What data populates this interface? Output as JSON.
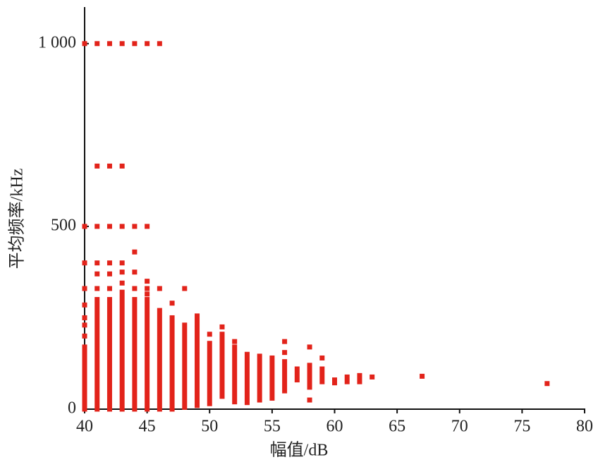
{
  "chart_data": {
    "type": "scatter",
    "x_label": "幅值/dB",
    "y_label": "平均频率/kHz",
    "color": "#e2231a",
    "x": [
      40,
      40,
      40,
      40,
      40,
      40,
      40,
      40,
      41,
      41,
      41,
      41,
      41,
      41,
      42,
      42,
      42,
      42,
      42,
      42,
      43,
      43,
      43,
      43,
      43,
      43,
      44,
      44,
      44,
      44,
      44,
      45,
      45,
      45,
      45,
      45,
      46,
      46,
      47,
      48,
      50,
      51,
      52,
      56,
      56,
      58,
      58,
      59,
      63,
      67,
      77
    ],
    "y": [
      200,
      230,
      250,
      285,
      330,
      400,
      500,
      1000,
      330,
      370,
      400,
      500,
      665,
      1000,
      330,
      370,
      400,
      500,
      665,
      1000,
      345,
      375,
      400,
      500,
      665,
      1000,
      330,
      375,
      430,
      500,
      1000,
      315,
      330,
      350,
      500,
      1000,
      330,
      1000,
      290,
      330,
      205,
      225,
      185,
      185,
      155,
      170,
      25,
      140,
      88,
      90,
      70
    ],
    "bands": {
      "x": [
        40,
        41,
        42,
        43,
        44,
        45,
        46,
        47,
        48,
        49,
        50,
        51,
        52,
        53,
        54,
        55,
        56,
        57,
        58,
        59,
        60,
        61,
        62
      ],
      "low": [
        0,
        0,
        0,
        0,
        0,
        0,
        0,
        0,
        5,
        10,
        15,
        35,
        20,
        18,
        25,
        30,
        50,
        80,
        60,
        75,
        72,
        75,
        75
      ],
      "high": [
        170,
        300,
        300,
        320,
        300,
        300,
        270,
        250,
        230,
        255,
        180,
        205,
        170,
        150,
        145,
        140,
        130,
        110,
        120,
        110,
        80,
        88,
        92
      ]
    },
    "xlim": [
      40,
      80
    ],
    "xticks": [
      40,
      45,
      50,
      55,
      60,
      65,
      70,
      75,
      80
    ],
    "ylim": [
      0,
      1100
    ],
    "yticks": [
      0,
      500,
      {
        "value": 1000,
        "label": "1 000"
      }
    ]
  }
}
